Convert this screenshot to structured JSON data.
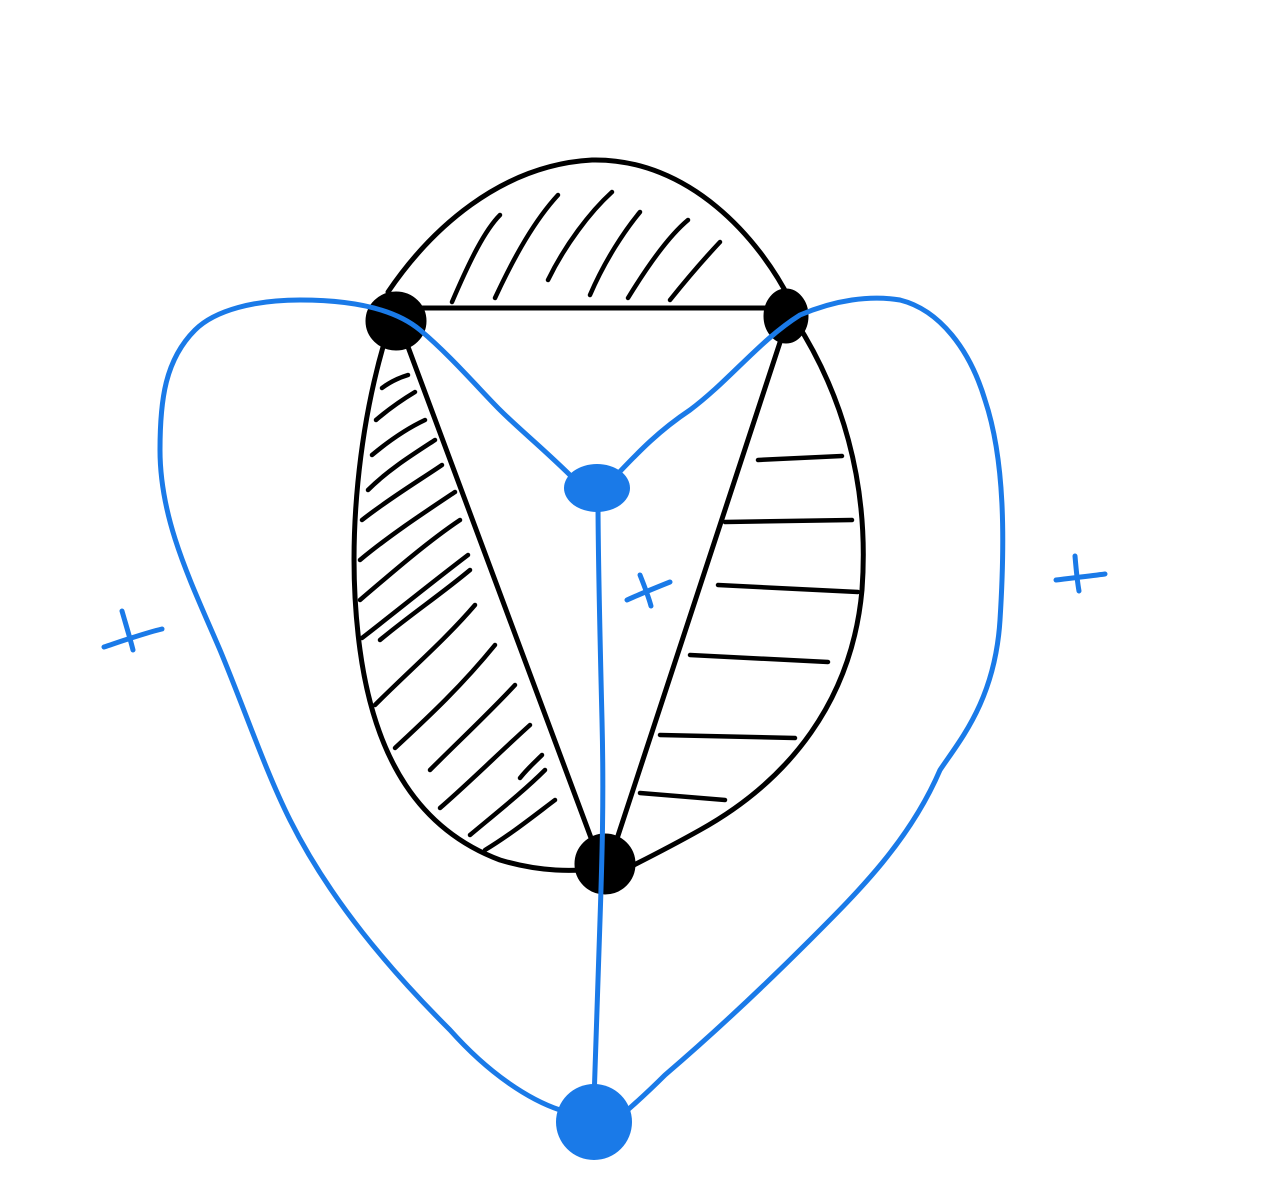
{
  "diagram": {
    "background_color": "#ffffff",
    "black_ink_color": "#000000",
    "blue_ink_color": "#1a7ae8",
    "primal_graph": {
      "vertex_count": 3,
      "edge_count": 6,
      "shaded_faces": [
        {
          "face": "top",
          "hatching": "diagonal"
        },
        {
          "face": "left",
          "hatching": "diagonal"
        },
        {
          "face": "right",
          "hatching": "horizontal"
        }
      ]
    },
    "dual_graph": {
      "vertex_count": 2,
      "edge_count": 3
    },
    "sign_marks": [
      {
        "region": "left-outer",
        "symbol": "+"
      },
      {
        "region": "center",
        "symbol": "+"
      },
      {
        "region": "right-outer",
        "symbol": "+"
      }
    ]
  }
}
